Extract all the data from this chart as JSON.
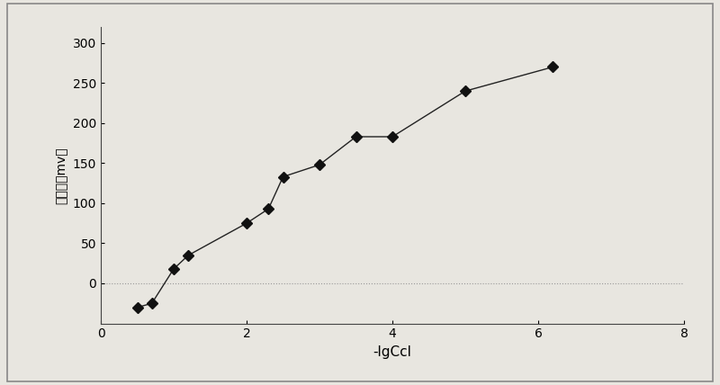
{
  "x": [
    0.5,
    0.7,
    1.0,
    1.2,
    2.0,
    2.3,
    2.5,
    3.0,
    3.5,
    4.0,
    5.0,
    6.2
  ],
  "y": [
    -30,
    -25,
    18,
    35,
    75,
    93,
    133,
    148,
    183,
    183,
    240,
    270
  ],
  "xlabel": "-lgCcl",
  "ylabel": "电动势（mv）",
  "xlim": [
    0,
    8
  ],
  "ylim": [
    -50,
    320
  ],
  "xticks": [
    0,
    2,
    4,
    6,
    8
  ],
  "yticks": [
    0,
    50,
    100,
    150,
    200,
    250,
    300
  ],
  "line_color": "#222222",
  "marker_color": "#111111",
  "marker_size": 6,
  "bg_color": "#e8e6e0",
  "plot_bg_color": "#e8e6e0",
  "zero_line_color": "#999999",
  "border_color": "#888888"
}
